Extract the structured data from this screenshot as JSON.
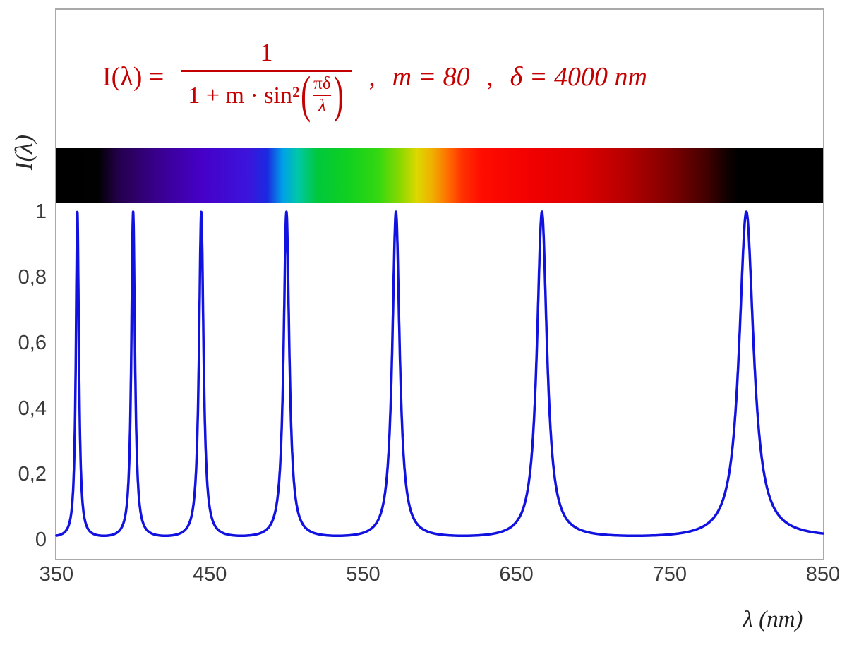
{
  "formula": {
    "lhs": "I(λ)  =",
    "frac_numerator": "1",
    "denom_text": "1 + m · sin²",
    "paren_open": "(",
    "inner_numerator": "πδ",
    "inner_denominator": "λ",
    "paren_close": ")",
    "separator1": ",",
    "param_m": "m = 80",
    "separator2": ",",
    "param_delta": "δ = 4000 nm"
  },
  "colors": {
    "formula_red": "#c40000",
    "curve_blue": "#1212e0",
    "frame_border": "#a9a9a9",
    "tick_text": "#3b3b3b"
  },
  "chart_data": {
    "type": "line",
    "title": "Interference intensity I(λ) = 1 / (1 + m·sin²(πδ/λ)), m = 80, δ = 4000 nm",
    "function": "I(lambda) = 1 / (1 + m * sin^2(pi * delta / lambda))",
    "parameters": {
      "m": 80,
      "delta_nm": 4000
    },
    "x": {
      "label": "λ  (nm)",
      "range": [
        350,
        850
      ],
      "ticks": [
        {
          "v": 350,
          "label": "350"
        },
        {
          "v": 450,
          "label": "450"
        },
        {
          "v": 550,
          "label": "550"
        },
        {
          "v": 650,
          "label": "650"
        },
        {
          "v": 750,
          "label": "750"
        },
        {
          "v": 850,
          "label": "850"
        }
      ]
    },
    "y": {
      "label": "I(λ)",
      "range": [
        0,
        1
      ],
      "ticks": [
        {
          "v": 0,
          "label": "0"
        },
        {
          "v": 0.2,
          "label": "0,2"
        },
        {
          "v": 0.4,
          "label": "0,4"
        },
        {
          "v": 0.6,
          "label": "0,6"
        },
        {
          "v": 0.8,
          "label": "0,8"
        },
        {
          "v": 1,
          "label": "1"
        }
      ]
    },
    "series": [
      {
        "name": "I(λ)",
        "color": "#1212e0",
        "stroke_width": 3.5,
        "sample_step_nm": 0.1
      }
    ],
    "peaks_nm": [
      363.64,
      400.0,
      444.44,
      500.0,
      571.43,
      666.67,
      800.0
    ],
    "peak_value": 1.0,
    "background_minimum": 0.0123,
    "grid": false,
    "legend": false,
    "spectrum_bar": {
      "range_nm": [
        350,
        850
      ],
      "visible_light_nm": [
        380,
        780
      ],
      "stops": [
        {
          "pos": 0,
          "color": "#000000"
        },
        {
          "pos": 5.5,
          "color": "#010102"
        },
        {
          "pos": 8,
          "color": "#24004a"
        },
        {
          "pos": 13,
          "color": "#38008c"
        },
        {
          "pos": 19,
          "color": "#4600c8"
        },
        {
          "pos": 25,
          "color": "#3c14dc"
        },
        {
          "pos": 27.5,
          "color": "#1b2ae0"
        },
        {
          "pos": 29.5,
          "color": "#00a0e8"
        },
        {
          "pos": 31.5,
          "color": "#00c8a8"
        },
        {
          "pos": 34,
          "color": "#00c83c"
        },
        {
          "pos": 38,
          "color": "#10d020"
        },
        {
          "pos": 42,
          "color": "#34d810"
        },
        {
          "pos": 45,
          "color": "#90d800"
        },
        {
          "pos": 47,
          "color": "#dcd800"
        },
        {
          "pos": 49,
          "color": "#f0b000"
        },
        {
          "pos": 51,
          "color": "#ff7000"
        },
        {
          "pos": 53,
          "color": "#ff3000"
        },
        {
          "pos": 55.5,
          "color": "#ff0c00"
        },
        {
          "pos": 62,
          "color": "#f00000"
        },
        {
          "pos": 68,
          "color": "#e00000"
        },
        {
          "pos": 74,
          "color": "#b80000"
        },
        {
          "pos": 80,
          "color": "#800000"
        },
        {
          "pos": 85,
          "color": "#400000"
        },
        {
          "pos": 87.5,
          "color": "#100000"
        },
        {
          "pos": 89,
          "color": "#000000"
        },
        {
          "pos": 100,
          "color": "#000000"
        }
      ]
    }
  }
}
